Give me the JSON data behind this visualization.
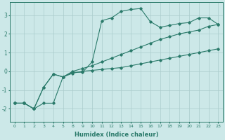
{
  "background_color": "#cce8e8",
  "grid_color": "#aacccc",
  "line_color": "#2a7a6a",
  "xlabel": "Humidex (Indice chaleur)",
  "xtick_labels": [
    "0",
    "1",
    "2",
    "3",
    "4",
    "5",
    "8",
    "9",
    "10",
    "11",
    "12",
    "13",
    "14",
    "15",
    "16",
    "17",
    "18",
    "19",
    "20",
    "21",
    "22",
    "23"
  ],
  "yticks": [
    -2,
    -1,
    0,
    1,
    2,
    3
  ],
  "ylim": [
    -2.7,
    3.7
  ],
  "line1_y": [
    -1.7,
    -1.7,
    -2.0,
    -1.7,
    -1.7,
    -0.3,
    -0.05,
    -0.05,
    0.5,
    2.7,
    2.85,
    3.2,
    3.3,
    3.35,
    2.65,
    2.35,
    2.45,
    2.55,
    2.6,
    2.85,
    2.85,
    2.5
  ],
  "line2_y": [
    -1.7,
    -1.7,
    -2.0,
    -0.85,
    -0.15,
    -0.3,
    -0.1,
    0.0,
    0.05,
    0.1,
    0.15,
    0.2,
    0.3,
    0.4,
    0.5,
    0.6,
    0.7,
    0.8,
    0.9,
    1.0,
    1.1,
    1.2
  ],
  "line3_y": [
    -1.7,
    -1.7,
    -2.0,
    -0.85,
    -0.15,
    -0.3,
    0.0,
    0.15,
    0.3,
    0.5,
    0.7,
    0.9,
    1.1,
    1.3,
    1.5,
    1.7,
    1.85,
    2.0,
    2.1,
    2.2,
    2.4,
    2.5
  ]
}
